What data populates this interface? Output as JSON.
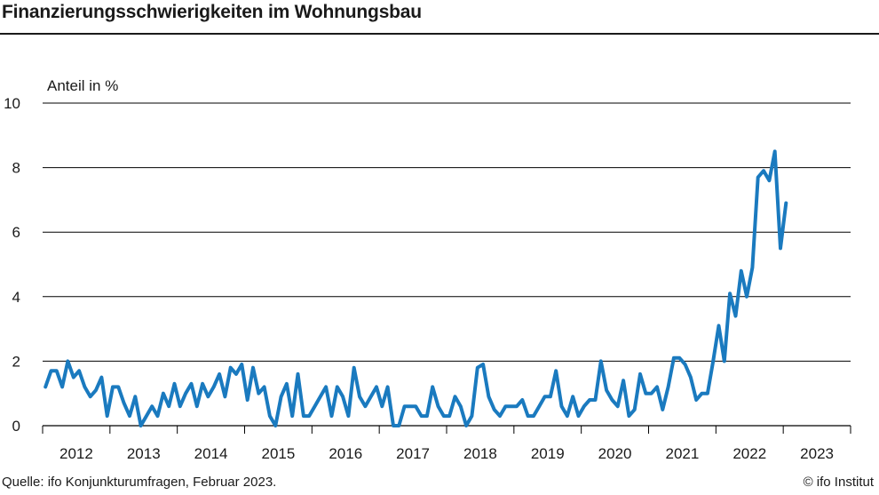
{
  "title": "Finanzierungsschwierigkeiten im Wohnungsbau",
  "source": "Quelle: ifo Konjunkturumfragen, Februar 2023.",
  "credit": "© ifo Institut",
  "colors": {
    "line": "#1a7abf",
    "grid": "#000000",
    "text": "#1a1a1a"
  },
  "chart_data": {
    "type": "line",
    "title": "Finanzierungsschwierigkeiten im Wohnungsbau",
    "ylabel": "Anteil in %",
    "xlabel": "",
    "ylim": [
      0,
      10
    ],
    "yticks": [
      0,
      2,
      4,
      6,
      8,
      10
    ],
    "grid": "horizontal",
    "legend": "none",
    "xlim": [
      "2012-01",
      "2023-12"
    ],
    "xtick_labels": [
      "2012",
      "2013",
      "2014",
      "2015",
      "2016",
      "2017",
      "2018",
      "2019",
      "2020",
      "2021",
      "2022",
      "2023"
    ],
    "series": [
      {
        "start": "2012-01",
        "frequency": "monthly",
        "values": [
          1.2,
          1.7,
          1.7,
          1.2,
          2.0,
          1.5,
          1.7,
          1.2,
          0.9,
          1.1,
          1.5,
          0.3,
          1.2,
          1.2,
          0.7,
          0.3,
          0.9,
          0.0,
          0.3,
          0.6,
          0.3,
          1.0,
          0.6,
          1.3,
          0.6,
          1.0,
          1.3,
          0.6,
          1.3,
          0.9,
          1.2,
          1.6,
          0.9,
          1.8,
          1.6,
          1.9,
          0.8,
          1.8,
          1.0,
          1.2,
          0.3,
          0.0,
          0.9,
          1.3,
          0.3,
          1.6,
          0.3,
          0.3,
          0.6,
          0.9,
          1.2,
          0.3,
          1.2,
          0.9,
          0.3,
          1.8,
          0.9,
          0.6,
          0.9,
          1.2,
          0.6,
          1.2,
          0.0,
          0.0,
          0.6,
          0.6,
          0.6,
          0.3,
          0.3,
          1.2,
          0.6,
          0.3,
          0.3,
          0.9,
          0.6,
          0.0,
          0.3,
          1.8,
          1.9,
          0.9,
          0.5,
          0.3,
          0.6,
          0.6,
          0.6,
          0.8,
          0.3,
          0.3,
          0.6,
          0.9,
          0.9,
          1.7,
          0.6,
          0.3,
          0.9,
          0.3,
          0.6,
          0.8,
          0.8,
          2.0,
          1.1,
          0.8,
          0.6,
          1.4,
          0.3,
          0.5,
          1.6,
          1.0,
          1.0,
          1.2,
          0.5,
          1.2,
          2.1,
          2.1,
          1.9,
          1.5,
          0.8,
          1.0,
          1.0,
          2.0,
          3.1,
          2.0,
          4.1,
          3.4,
          4.8,
          4.0,
          4.9,
          7.7,
          7.9,
          7.6,
          8.5,
          5.5,
          6.9
        ]
      }
    ]
  }
}
